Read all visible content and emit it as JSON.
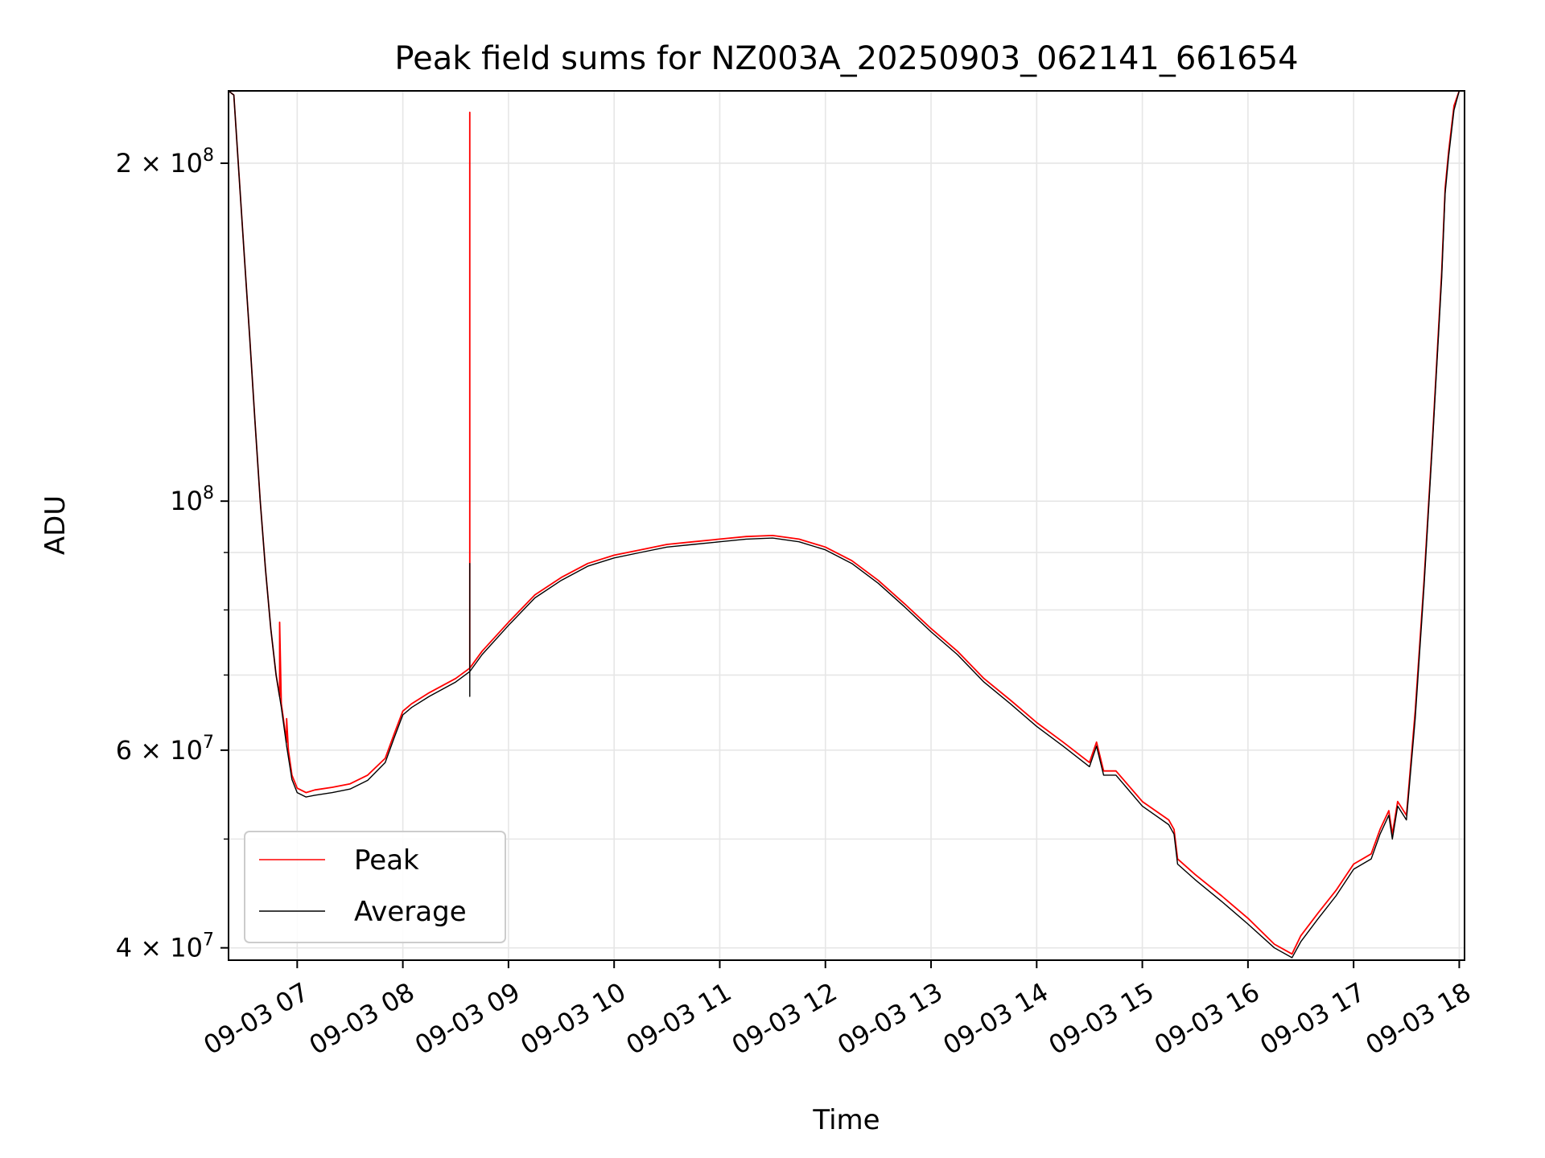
{
  "chart_data": {
    "type": "line",
    "title": "Peak field sums for NZ003A_20250903_062141_661654",
    "xlabel": "Time",
    "ylabel": "ADU",
    "yscale": "log",
    "grid": true,
    "legend_position": "lower-left",
    "xlim": [
      "2025-09-03 06:21",
      "2025-09-03 18:03"
    ],
    "ylim": [
      39000000,
      232000000
    ],
    "x_ticks": [
      {
        "t": "2025-09-03 07:00",
        "label": "09-03 07"
      },
      {
        "t": "2025-09-03 08:00",
        "label": "09-03 08"
      },
      {
        "t": "2025-09-03 09:00",
        "label": "09-03 09"
      },
      {
        "t": "2025-09-03 10:00",
        "label": "09-03 10"
      },
      {
        "t": "2025-09-03 11:00",
        "label": "09-03 11"
      },
      {
        "t": "2025-09-03 12:00",
        "label": "09-03 12"
      },
      {
        "t": "2025-09-03 13:00",
        "label": "09-03 13"
      },
      {
        "t": "2025-09-03 14:00",
        "label": "09-03 14"
      },
      {
        "t": "2025-09-03 15:00",
        "label": "09-03 15"
      },
      {
        "t": "2025-09-03 16:00",
        "label": "09-03 16"
      },
      {
        "t": "2025-09-03 17:00",
        "label": "09-03 17"
      },
      {
        "t": "2025-09-03 18:00",
        "label": "09-03 18"
      }
    ],
    "y_ticks": [
      {
        "value": 40000000,
        "mantissa": "4",
        "exponent": "7"
      },
      {
        "value": 60000000,
        "mantissa": "6",
        "exponent": "7"
      },
      {
        "value": 100000000,
        "mantissa": "",
        "exponent": "8"
      },
      {
        "value": 200000000,
        "mantissa": "2",
        "exponent": "8"
      }
    ],
    "y_minor_ticks": [
      50000000,
      70000000,
      80000000,
      90000000
    ],
    "series": [
      {
        "name": "Peak",
        "color": "#ff0000",
        "x": [
          "2025-09-03 06:21",
          "2025-09-03 06:24",
          "2025-09-03 06:27",
          "2025-09-03 06:30",
          "2025-09-03 06:33",
          "2025-09-03 06:36",
          "2025-09-03 06:39",
          "2025-09-03 06:42",
          "2025-09-03 06:45",
          "2025-09-03 06:48",
          "2025-09-03 06:50",
          "2025-09-03 06:50",
          "2025-09-03 06:51",
          "2025-09-03 06:54",
          "2025-09-03 06:54",
          "2025-09-03 06:55",
          "2025-09-03 06:57",
          "2025-09-03 07:00",
          "2025-09-03 07:05",
          "2025-09-03 07:10",
          "2025-09-03 07:20",
          "2025-09-03 07:30",
          "2025-09-03 07:40",
          "2025-09-03 07:50",
          "2025-09-03 07:55",
          "2025-09-03 08:00",
          "2025-09-03 08:05",
          "2025-09-03 08:15",
          "2025-09-03 08:30",
          "2025-09-03 08:38",
          "2025-09-03 08:38",
          "2025-09-03 08:38",
          "2025-09-03 08:45",
          "2025-09-03 09:00",
          "2025-09-03 09:15",
          "2025-09-03 09:30",
          "2025-09-03 09:45",
          "2025-09-03 10:00",
          "2025-09-03 10:15",
          "2025-09-03 10:30",
          "2025-09-03 10:45",
          "2025-09-03 11:00",
          "2025-09-03 11:15",
          "2025-09-03 11:30",
          "2025-09-03 11:45",
          "2025-09-03 12:00",
          "2025-09-03 12:15",
          "2025-09-03 12:30",
          "2025-09-03 12:45",
          "2025-09-03 13:00",
          "2025-09-03 13:15",
          "2025-09-03 13:30",
          "2025-09-03 13:45",
          "2025-09-03 14:00",
          "2025-09-03 14:15",
          "2025-09-03 14:30",
          "2025-09-03 14:34",
          "2025-09-03 14:38",
          "2025-09-03 14:45",
          "2025-09-03 15:00",
          "2025-09-03 15:15",
          "2025-09-03 15:18",
          "2025-09-03 15:20",
          "2025-09-03 15:30",
          "2025-09-03 15:45",
          "2025-09-03 16:00",
          "2025-09-03 16:15",
          "2025-09-03 16:25",
          "2025-09-03 16:30",
          "2025-09-03 16:40",
          "2025-09-03 16:50",
          "2025-09-03 17:00",
          "2025-09-03 17:10",
          "2025-09-03 17:15",
          "2025-09-03 17:20",
          "2025-09-03 17:22",
          "2025-09-03 17:25",
          "2025-09-03 17:30",
          "2025-09-03 17:35",
          "2025-09-03 17:40",
          "2025-09-03 17:45",
          "2025-09-03 17:50",
          "2025-09-03 17:52",
          "2025-09-03 17:54",
          "2025-09-03 17:57",
          "2025-09-03 18:00",
          "2025-09-03 18:03"
        ],
        "y": [
          232000000,
          230000000,
          195000000,
          165000000,
          140000000,
          118000000,
          100000000,
          87000000,
          77000000,
          70000000,
          67000000,
          78000000,
          66000000,
          61000000,
          64000000,
          60000000,
          57000000,
          55500000,
          55000000,
          55300000,
          55600000,
          56000000,
          57000000,
          59000000,
          62000000,
          65000000,
          66000000,
          67500000,
          69500000,
          71000000,
          222000000,
          71000000,
          73500000,
          78000000,
          82500000,
          85500000,
          88000000,
          89500000,
          90500000,
          91500000,
          92000000,
          92500000,
          93000000,
          93200000,
          92500000,
          91000000,
          88500000,
          85000000,
          81000000,
          77000000,
          73500000,
          69500000,
          66500000,
          63500000,
          61000000,
          58500000,
          61000000,
          57500000,
          57500000,
          54000000,
          52000000,
          51000000,
          48000000,
          46500000,
          44500000,
          42500000,
          40300000,
          39500000,
          41000000,
          43000000,
          45000000,
          47500000,
          48500000,
          51000000,
          53000000,
          50500000,
          54000000,
          52500000,
          65000000,
          85000000,
          115000000,
          160000000,
          190000000,
          205000000,
          225000000,
          232000000,
          232000000
        ]
      },
      {
        "name": "Average",
        "color": "#000000",
        "x": [
          "2025-09-03 06:21",
          "2025-09-03 06:24",
          "2025-09-03 06:27",
          "2025-09-03 06:30",
          "2025-09-03 06:33",
          "2025-09-03 06:36",
          "2025-09-03 06:39",
          "2025-09-03 06:42",
          "2025-09-03 06:45",
          "2025-09-03 06:48",
          "2025-09-03 06:51",
          "2025-09-03 06:54",
          "2025-09-03 06:57",
          "2025-09-03 07:00",
          "2025-09-03 07:05",
          "2025-09-03 07:10",
          "2025-09-03 07:20",
          "2025-09-03 07:30",
          "2025-09-03 07:40",
          "2025-09-03 07:50",
          "2025-09-03 07:55",
          "2025-09-03 08:00",
          "2025-09-03 08:05",
          "2025-09-03 08:15",
          "2025-09-03 08:30",
          "2025-09-03 08:38",
          "2025-09-03 08:38",
          "2025-09-03 08:38",
          "2025-09-03 08:38",
          "2025-09-03 08:45",
          "2025-09-03 09:00",
          "2025-09-03 09:15",
          "2025-09-03 09:30",
          "2025-09-03 09:45",
          "2025-09-03 10:00",
          "2025-09-03 10:15",
          "2025-09-03 10:30",
          "2025-09-03 10:45",
          "2025-09-03 11:00",
          "2025-09-03 11:15",
          "2025-09-03 11:30",
          "2025-09-03 11:45",
          "2025-09-03 12:00",
          "2025-09-03 12:15",
          "2025-09-03 12:30",
          "2025-09-03 12:45",
          "2025-09-03 13:00",
          "2025-09-03 13:15",
          "2025-09-03 13:30",
          "2025-09-03 13:45",
          "2025-09-03 14:00",
          "2025-09-03 14:15",
          "2025-09-03 14:30",
          "2025-09-03 14:34",
          "2025-09-03 14:38",
          "2025-09-03 14:45",
          "2025-09-03 15:00",
          "2025-09-03 15:15",
          "2025-09-03 15:18",
          "2025-09-03 15:20",
          "2025-09-03 15:30",
          "2025-09-03 15:45",
          "2025-09-03 16:00",
          "2025-09-03 16:15",
          "2025-09-03 16:25",
          "2025-09-03 16:30",
          "2025-09-03 16:40",
          "2025-09-03 16:50",
          "2025-09-03 17:00",
          "2025-09-03 17:10",
          "2025-09-03 17:15",
          "2025-09-03 17:20",
          "2025-09-03 17:22",
          "2025-09-03 17:25",
          "2025-09-03 17:30",
          "2025-09-03 17:35",
          "2025-09-03 17:40",
          "2025-09-03 17:45",
          "2025-09-03 17:50",
          "2025-09-03 17:52",
          "2025-09-03 17:54",
          "2025-09-03 17:57",
          "2025-09-03 18:00",
          "2025-09-03 18:03"
        ],
        "y": [
          232000000,
          230000000,
          195000000,
          165000000,
          140000000,
          118000000,
          100000000,
          87000000,
          77000000,
          70000000,
          65500000,
          60500000,
          56500000,
          55000000,
          54500000,
          54700000,
          55000000,
          55400000,
          56400000,
          58500000,
          61500000,
          64500000,
          65500000,
          67000000,
          69000000,
          70500000,
          88000000,
          67000000,
          70500000,
          73000000,
          77500000,
          82000000,
          85000000,
          87500000,
          89000000,
          90000000,
          91000000,
          91500000,
          92000000,
          92500000,
          92700000,
          92000000,
          90500000,
          88000000,
          84500000,
          80500000,
          76500000,
          73000000,
          69000000,
          66000000,
          63000000,
          60500000,
          58000000,
          60500000,
          57000000,
          57000000,
          53500000,
          51500000,
          50500000,
          47500000,
          46000000,
          44000000,
          42000000,
          40000000,
          39200000,
          40500000,
          42500000,
          44500000,
          47000000,
          48000000,
          50500000,
          52500000,
          50000000,
          53500000,
          52000000,
          64000000,
          84000000,
          114000000,
          158000000,
          188000000,
          203000000,
          223000000,
          232000000,
          232000000
        ]
      }
    ]
  }
}
